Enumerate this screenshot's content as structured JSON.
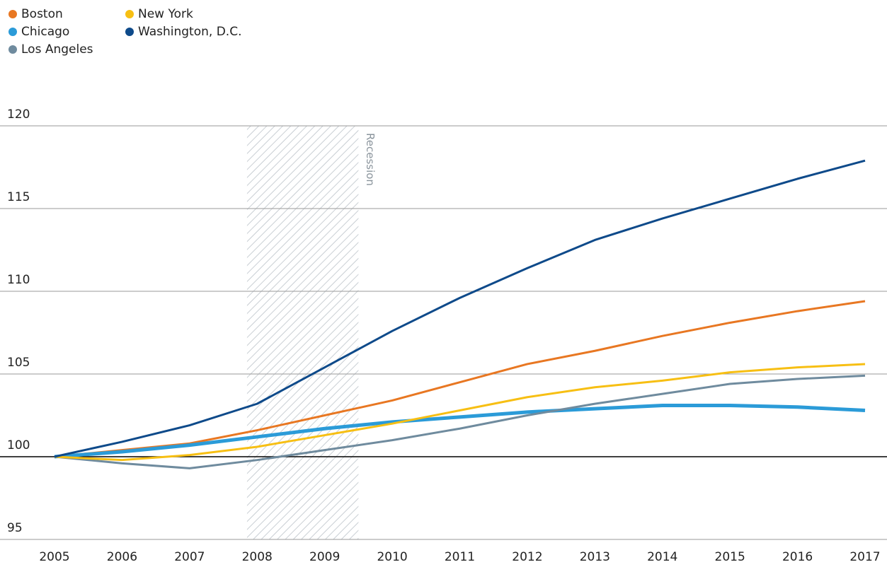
{
  "chart_data": {
    "type": "line",
    "x": [
      2005,
      2006,
      2007,
      2008,
      2009,
      2010,
      2011,
      2012,
      2013,
      2014,
      2015,
      2016,
      2017
    ],
    "xlim": [
      2005,
      2017
    ],
    "xticks": [
      2005,
      2006,
      2007,
      2008,
      2009,
      2010,
      2011,
      2012,
      2013,
      2014,
      2015,
      2016,
      2017
    ],
    "ylim": [
      95,
      120
    ],
    "yticks": [
      95,
      100,
      105,
      110,
      115,
      120
    ],
    "grid": true,
    "baseline": 100,
    "recession": {
      "label": "Recession",
      "start": 2007.85,
      "end": 2009.5
    },
    "series": [
      {
        "name": "Boston",
        "color": "#e87722",
        "values": [
          100,
          100.4,
          100.8,
          101.6,
          102.5,
          103.4,
          104.5,
          105.6,
          106.4,
          107.3,
          108.1,
          108.8,
          109.4
        ]
      },
      {
        "name": "Chicago",
        "color": "#2b9bd8",
        "values": [
          100,
          100.3,
          100.7,
          101.2,
          101.7,
          102.1,
          102.4,
          102.7,
          102.9,
          103.1,
          103.1,
          103.0,
          102.8
        ]
      },
      {
        "name": "Los Angeles",
        "color": "#6f8b9e",
        "values": [
          100,
          99.6,
          99.3,
          99.8,
          100.4,
          101.0,
          101.7,
          102.5,
          103.2,
          103.8,
          104.4,
          104.7,
          104.9
        ]
      },
      {
        "name": "New York",
        "color": "#f7bf13",
        "values": [
          100,
          99.8,
          100.1,
          100.6,
          101.3,
          102.0,
          102.8,
          103.6,
          104.2,
          104.6,
          105.1,
          105.4,
          105.6
        ]
      },
      {
        "name": "Washington, D.C.",
        "color": "#0e4a8a",
        "values": [
          100,
          100.9,
          101.9,
          103.2,
          105.4,
          107.6,
          109.6,
          111.4,
          113.1,
          114.4,
          115.6,
          116.8,
          117.9
        ]
      }
    ]
  }
}
